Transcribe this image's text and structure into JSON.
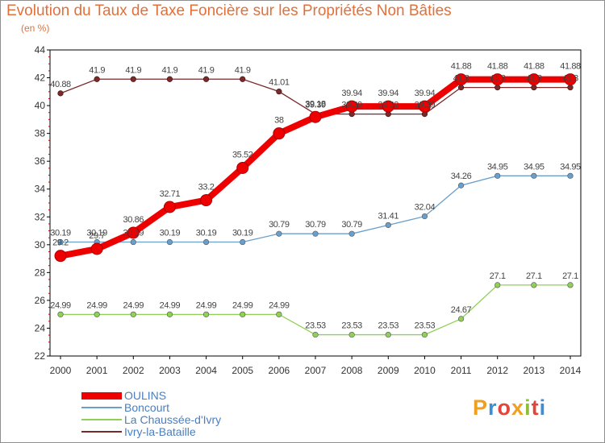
{
  "chart_data": {
    "type": "line",
    "title": "Evolution du Taux de Taxe Foncière sur les Propriétés Non Bâties",
    "ylabel": "(en %)",
    "xlabel": "",
    "x": [
      "2000",
      "2001",
      "2002",
      "2003",
      "2004",
      "2005",
      "2006",
      "2007",
      "2008",
      "2009",
      "2010",
      "2011",
      "2012",
      "2013",
      "2014"
    ],
    "ylim": [
      22,
      44
    ],
    "yticks": [
      "22",
      "24",
      "26",
      "28",
      "30",
      "32",
      "34",
      "36",
      "38",
      "40",
      "42",
      "44"
    ],
    "grid": false,
    "legend_position": "bottom-left",
    "series": [
      {
        "name": "OULINS",
        "color": "#ee0000",
        "values": [
          29.2,
          29.7,
          30.86,
          32.71,
          33.2,
          35.52,
          38,
          39.18,
          39.94,
          39.94,
          39.94,
          41.88,
          41.88,
          41.88,
          41.88
        ],
        "labels": [
          "29.2",
          "29.7",
          "30.86",
          "32.71",
          "33.2",
          "35.52",
          "38",
          "39.18",
          "39.94",
          "39.94",
          "39.94",
          "41.88",
          "41.88",
          "41.88",
          "41.88"
        ]
      },
      {
        "name": "Boncourt",
        "color": "#6a9fcb",
        "values": [
          30.19,
          30.19,
          30.19,
          30.19,
          30.19,
          30.19,
          30.79,
          30.79,
          30.79,
          31.41,
          32.04,
          34.26,
          34.95,
          34.95,
          34.95
        ],
        "labels": [
          "30.19",
          "30.19",
          "30.19",
          "30.19",
          "30.19",
          "30.19",
          "30.79",
          "30.79",
          "30.79",
          "31.41",
          "32.04",
          "34.26",
          "34.95",
          "34.95",
          "34.95"
        ]
      },
      {
        "name": "La Chaussée-d'Ivry",
        "color": "#8fd157",
        "values": [
          24.99,
          24.99,
          24.99,
          24.99,
          24.99,
          24.99,
          24.99,
          23.53,
          23.53,
          23.53,
          23.53,
          24.67,
          27.1,
          27.1,
          27.1
        ],
        "labels": [
          "24.99",
          "24.99",
          "24.99",
          "24.99",
          "24.99",
          "24.99",
          "24.99",
          "23.53",
          "23.53",
          "23.53",
          "23.53",
          "24.67",
          "27.1",
          "27.1",
          "27.1"
        ]
      },
      {
        "name": "Ivry-la-Bataille",
        "color": "#7b2a2a",
        "values": [
          40.88,
          41.9,
          41.9,
          41.9,
          41.9,
          41.9,
          41.01,
          39.39,
          39.39,
          39.39,
          39.39,
          41.3,
          41.3,
          41.3,
          41.3
        ],
        "labels": [
          "40.88",
          "41.9",
          "41.9",
          "41.9",
          "41.9",
          "41.9",
          "41.01",
          "39.39",
          "39.39",
          "39.39",
          "39.39",
          "41.3",
          "41.3",
          "41.3",
          "41.3"
        ]
      }
    ]
  },
  "branding": {
    "logo_letters": [
      "P",
      "r",
      "o",
      "x",
      "i",
      "t",
      "i"
    ],
    "logo_colors": [
      "#f0a020",
      "#3b8fd8",
      "#e2463a",
      "#f0a020",
      "#8fbf3a",
      "#e2463a",
      "#3b8fd8"
    ]
  }
}
